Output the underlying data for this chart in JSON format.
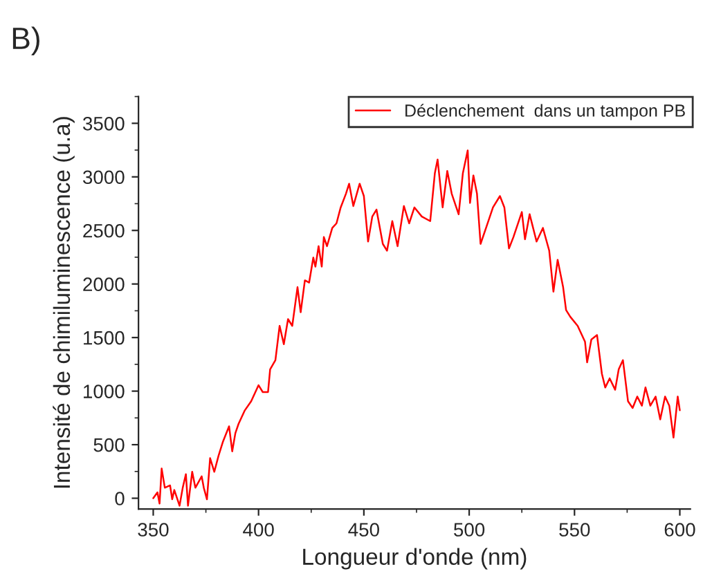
{
  "chart_data": {
    "type": "line",
    "xlabel": "Longueur d'onde (nm)",
    "ylabel": "Intensité de chimiluminescence (u.a)",
    "annotations": [
      "B)"
    ],
    "x": [
      350,
      352,
      353,
      354,
      355.5,
      358,
      359,
      360,
      362.5,
      364,
      365.5,
      366.5,
      368.5,
      370,
      373,
      374,
      375.5,
      377,
      379,
      381,
      383,
      386,
      387.5,
      389,
      390.5,
      393.5,
      396.5,
      400,
      402,
      404.5,
      405.5,
      408,
      410,
      412,
      414,
      416,
      418.5,
      420,
      422,
      424,
      426,
      427,
      428.5,
      430,
      431,
      432.5,
      435,
      437,
      439,
      441.5,
      443,
      445,
      448,
      450,
      452,
      454,
      456,
      459,
      461,
      463.5,
      466,
      469,
      471.5,
      474,
      477.5,
      481.5,
      483.7,
      485,
      487.4,
      489.6,
      491.7,
      495,
      497,
      499.3,
      500.4,
      502,
      503.7,
      505.4,
      508,
      511.3,
      514.6,
      516.7,
      518.9,
      521,
      525,
      526.5,
      528.7,
      532,
      535,
      538,
      540,
      542,
      544.6,
      546,
      548,
      551.5,
      555,
      556,
      558,
      560.7,
      563,
      564.6,
      566.7,
      569.3,
      571,
      573,
      575.4,
      577.6,
      579.8,
      582,
      583.7,
      586,
      588.5,
      590.7,
      593,
      595,
      597,
      599,
      600
    ],
    "series": [
      {
        "name": "Déclenchement  dans un tampon PB",
        "color": "#ff0000",
        "values": [
          0,
          55,
          -50,
          277,
          98,
          120,
          -10,
          77,
          -70,
          98,
          225,
          -70,
          247,
          98,
          204,
          98,
          -10,
          374,
          247,
          396,
          523,
          672,
          438,
          608,
          694,
          821,
          906,
          1055,
          991,
          991,
          1204,
          1289,
          1609,
          1438,
          1672,
          1609,
          1970,
          1736,
          2034,
          2013,
          2247,
          2162,
          2353,
          2162,
          2438,
          2353,
          2523,
          2566,
          2715,
          2843,
          2936,
          2728,
          2936,
          2821,
          2396,
          2630,
          2694,
          2374,
          2311,
          2587,
          2353,
          2728,
          2566,
          2715,
          2630,
          2587,
          3034,
          3162,
          2715,
          3055,
          2843,
          2651,
          3034,
          3247,
          2757,
          3013,
          2843,
          2374,
          2523,
          2715,
          2821,
          2715,
          2332,
          2438,
          2672,
          2417,
          2651,
          2396,
          2523,
          2311,
          1928,
          2226,
          1970,
          1757,
          1694,
          1609,
          1460,
          1268,
          1481,
          1523,
          1162,
          1034,
          1119,
          1013,
          1204,
          1289,
          906,
          843,
          949,
          864,
          1034,
          864,
          949,
          736,
          949,
          864,
          566,
          949,
          821
        ]
      }
    ],
    "xlim": [
      343,
      605
    ],
    "ylim": [
      -100,
      3750
    ],
    "xticks": [
      350,
      400,
      450,
      500,
      550,
      600
    ],
    "yticks": [
      0,
      500,
      1000,
      1500,
      2000,
      2500,
      3000,
      3500
    ],
    "grid": false,
    "legend": "top right"
  }
}
